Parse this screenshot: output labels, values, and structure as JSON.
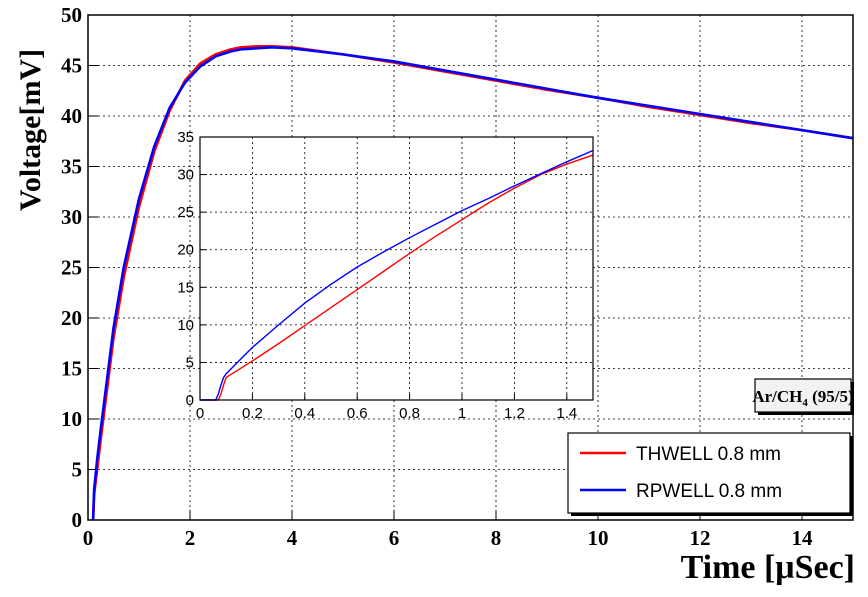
{
  "chart_data": [
    {
      "type": "line",
      "xlabel": "Time [μSec]",
      "ylabel": "Voltage[mV]",
      "xlim": [
        0,
        15
      ],
      "ylim": [
        0,
        50
      ],
      "xticks": [
        0,
        2,
        4,
        6,
        8,
        10,
        12,
        14
      ],
      "yticks": [
        0,
        5,
        10,
        15,
        20,
        25,
        30,
        35,
        40,
        45,
        50
      ],
      "grid": true,
      "legend_position": "bottom-right",
      "annotation": {
        "prefix": "Ar/CH",
        "subscript": "4",
        "suffix": " (95/5)"
      },
      "series": [
        {
          "name": "THWELL 0.8 mm",
          "color": "#ff0000",
          "x": [
            0.1,
            0.12,
            0.18,
            0.25,
            0.35,
            0.5,
            0.7,
            1.0,
            1.3,
            1.6,
            1.9,
            2.2,
            2.5,
            2.8,
            3.0,
            3.3,
            3.6,
            4.0,
            5.0,
            6.0,
            7.0,
            8.0,
            9.0,
            10.0,
            11.0,
            12.0,
            13.0,
            14.0,
            15.0
          ],
          "y": [
            0,
            2.5,
            5,
            8,
            12,
            18,
            24,
            31,
            36.5,
            40.5,
            43.5,
            45.2,
            46.1,
            46.6,
            46.8,
            46.9,
            46.9,
            46.8,
            46.1,
            45.3,
            44.4,
            43.5,
            42.6,
            41.8,
            40.9,
            40.1,
            39.3,
            38.6,
            37.8
          ]
        },
        {
          "name": "RPWELL 0.8 mm",
          "color": "#0000ff",
          "x": [
            0.1,
            0.12,
            0.18,
            0.25,
            0.35,
            0.5,
            0.7,
            1.0,
            1.3,
            1.6,
            1.9,
            2.2,
            2.5,
            2.8,
            3.0,
            3.3,
            3.6,
            4.0,
            5.0,
            6.0,
            7.0,
            8.0,
            9.0,
            10.0,
            11.0,
            12.0,
            13.0,
            14.0,
            15.0
          ],
          "y": [
            0,
            3,
            6,
            9,
            13,
            19,
            25,
            31.8,
            37,
            40.8,
            43.3,
            44.9,
            45.9,
            46.4,
            46.6,
            46.7,
            46.8,
            46.7,
            46.1,
            45.4,
            44.5,
            43.6,
            42.7,
            41.8,
            41.0,
            40.2,
            39.4,
            38.6,
            37.8
          ]
        }
      ]
    },
    {
      "type": "line",
      "inset": true,
      "xlim": [
        0,
        1.5
      ],
      "ylim": [
        0,
        35
      ],
      "xticks": [
        0,
        0.2,
        0.4,
        0.6,
        0.8,
        1,
        1.2,
        1.4
      ],
      "yticks": [
        0,
        5,
        10,
        15,
        20,
        25,
        30,
        35
      ],
      "grid": true,
      "series": [
        {
          "name": "THWELL 0.8 mm",
          "color": "#ff0000",
          "x": [
            0,
            0.07,
            0.08,
            0.09,
            0.1,
            0.2,
            0.3,
            0.4,
            0.5,
            0.6,
            0.7,
            0.8,
            0.9,
            1.0,
            1.1,
            1.2,
            1.3,
            1.4,
            1.5
          ],
          "y": [
            0,
            0,
            0.8,
            2.0,
            3.0,
            5.2,
            7.5,
            9.9,
            12.3,
            14.7,
            17.1,
            19.5,
            21.8,
            24.0,
            26.2,
            28.2,
            30.0,
            31.4,
            32.6
          ]
        },
        {
          "name": "RPWELL 0.8 mm",
          "color": "#0000ff",
          "x": [
            0,
            0.06,
            0.07,
            0.08,
            0.09,
            0.1,
            0.2,
            0.3,
            0.4,
            0.5,
            0.6,
            0.7,
            0.8,
            0.9,
            1.0,
            1.1,
            1.2,
            1.3,
            1.4,
            1.5
          ],
          "y": [
            0,
            0,
            0.8,
            2.0,
            3.0,
            3.5,
            7.0,
            10.0,
            12.9,
            15.4,
            17.7,
            19.7,
            21.6,
            23.4,
            25.2,
            26.8,
            28.5,
            30.1,
            31.7,
            33.2
          ]
        }
      ]
    }
  ]
}
